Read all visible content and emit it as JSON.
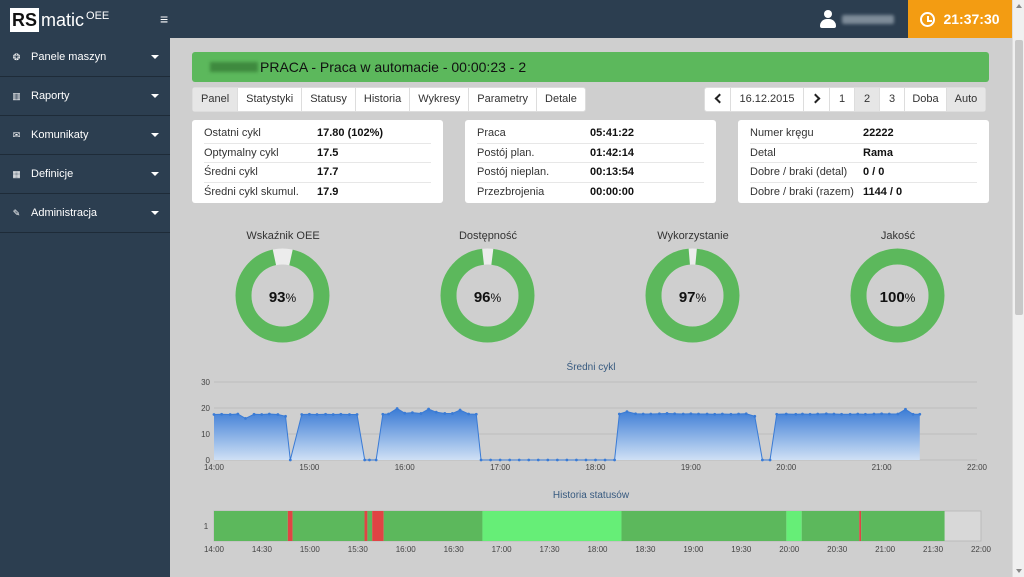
{
  "header": {
    "logo_rs": "RS",
    "logo_matic": "matic",
    "logo_oee": "OEE",
    "menu_toggle": "≡",
    "clock": "21:37:30"
  },
  "sidebar": {
    "items": [
      {
        "label": "Panele maszyn",
        "icon": "dashboard-icon",
        "glyph": "❂"
      },
      {
        "label": "Raporty",
        "icon": "bar-chart-icon",
        "glyph": "▥"
      },
      {
        "label": "Komunikaty",
        "icon": "envelope-icon",
        "glyph": "✉"
      },
      {
        "label": "Definicje",
        "icon": "table-icon",
        "glyph": "▦"
      },
      {
        "label": "Administracja",
        "icon": "wrench-icon",
        "glyph": "✎"
      }
    ]
  },
  "status_banner": {
    "text": "PRACA - Praca w automacie - 00:00:23 - 2",
    "color": "#5cb85c"
  },
  "tabs": [
    "Panel",
    "Statystyki",
    "Statusy",
    "Historia",
    "Wykresy",
    "Parametry",
    "Detale"
  ],
  "pager": {
    "date": "16.12.2015",
    "pages": [
      "1",
      "2",
      "3"
    ],
    "active_page": "2",
    "doba": "Doba",
    "auto": "Auto"
  },
  "panel_cycle": [
    {
      "label": "Ostatni cykl",
      "value": "17.80 (102%)"
    },
    {
      "label": "Optymalny cykl",
      "value": "17.5"
    },
    {
      "label": "Średni cykl",
      "value": "17.7"
    },
    {
      "label": "Średni cykl skumul.",
      "value": "17.9"
    }
  ],
  "panel_time": [
    {
      "label": "Praca",
      "value": "05:41:22"
    },
    {
      "label": "Postój plan.",
      "value": "01:42:14"
    },
    {
      "label": "Postój nieplan.",
      "value": "00:13:54"
    },
    {
      "label": "Przezbrojenia",
      "value": "00:00:00"
    }
  ],
  "panel_detail": [
    {
      "label": "Numer kręgu",
      "value": "22222"
    },
    {
      "label": "Detal",
      "value": "Rama"
    },
    {
      "label": "Dobre / braki (detal)",
      "value": "0 / 0"
    },
    {
      "label": "Dobre / braki (razem)",
      "value": "1144 / 0"
    }
  ],
  "gauges": [
    {
      "title": "Wskaźnik OEE",
      "value": 93,
      "text": "93",
      "unit": "%"
    },
    {
      "title": "Dostępność",
      "value": 96,
      "text": "96",
      "unit": "%"
    },
    {
      "title": "Wykorzystanie",
      "value": 97,
      "text": "97",
      "unit": "%"
    },
    {
      "title": "Jakość",
      "value": 100,
      "text": "100",
      "unit": "%"
    }
  ],
  "colors": {
    "green": "#5cb85c",
    "gauge_rest": "#ececec",
    "accent": "#f39c12",
    "nav": "#2c3e50",
    "area": "#3a7bd5",
    "status_work": "#5cb85c",
    "status_plan": "#66ee77",
    "status_unplan": "#e04444"
  },
  "chart_data": [
    {
      "type": "area",
      "title": "Średni cykl",
      "ylim": [
        0,
        30
      ],
      "yticks": [
        "0",
        "10",
        "20",
        "30"
      ],
      "xticks": [
        "14:00",
        "15:00",
        "16:00",
        "17:00",
        "18:00",
        "19:00",
        "20:00",
        "21:00",
        "22:00"
      ],
      "x_hours": [
        14.0,
        14.08,
        14.17,
        14.25,
        14.33,
        14.42,
        14.5,
        14.58,
        14.67,
        14.75,
        14.8,
        14.92,
        15.0,
        15.08,
        15.17,
        15.25,
        15.33,
        15.42,
        15.5,
        15.58,
        15.63,
        15.7,
        15.77,
        15.83,
        15.92,
        16.0,
        16.08,
        16.17,
        16.25,
        16.33,
        16.42,
        16.5,
        16.58,
        16.67,
        16.75,
        16.8,
        16.9,
        17.0,
        17.1,
        17.2,
        17.3,
        17.4,
        17.5,
        17.6,
        17.7,
        17.8,
        17.9,
        18.0,
        18.1,
        18.2,
        18.25,
        18.33,
        18.42,
        18.5,
        18.58,
        18.67,
        18.75,
        18.83,
        18.92,
        19.0,
        19.08,
        19.17,
        19.25,
        19.33,
        19.42,
        19.5,
        19.58,
        19.67,
        19.75,
        19.83,
        19.9,
        20.0,
        20.1,
        20.17,
        20.25,
        20.33,
        20.42,
        20.5,
        20.58,
        20.67,
        20.75,
        20.83,
        20.92,
        21.0,
        21.08,
        21.17,
        21.25,
        21.33,
        21.4
      ],
      "values": [
        17.5,
        17.6,
        17.5,
        17.7,
        16.0,
        17.6,
        17.5,
        17.7,
        17.5,
        16.8,
        0,
        17.5,
        17.6,
        17.5,
        17.6,
        17.5,
        17.6,
        17.5,
        17.5,
        0,
        0,
        0,
        17.6,
        17.7,
        19.8,
        18.0,
        18.2,
        17.9,
        19.6,
        18.4,
        17.9,
        17.9,
        19.2,
        17.7,
        17.6,
        0,
        0,
        0,
        0,
        0,
        0,
        0,
        0,
        0,
        0,
        0,
        0,
        0,
        0,
        0,
        17.7,
        18.6,
        17.8,
        17.7,
        17.7,
        17.8,
        17.9,
        17.8,
        17.7,
        17.8,
        17.7,
        17.7,
        17.6,
        17.7,
        17.6,
        17.7,
        17.8,
        16.8,
        0,
        0,
        17.6,
        17.7,
        17.6,
        17.7,
        17.6,
        17.7,
        17.8,
        17.7,
        17.6,
        17.6,
        17.7,
        17.6,
        17.7,
        17.8,
        17.7,
        17.7,
        19.5,
        17.6,
        17.6
      ]
    },
    {
      "type": "heatmap",
      "title": "Historia statusów",
      "y_label": "1",
      "xticks": [
        "14:00",
        "14:30",
        "15:00",
        "15:30",
        "16:00",
        "16:30",
        "17:00",
        "17:30",
        "18:00",
        "18:30",
        "19:00",
        "19:30",
        "20:00",
        "20:30",
        "21:00",
        "21:30",
        "22:00"
      ],
      "segments": [
        {
          "start": 14.0,
          "end": 14.77,
          "status": "praca"
        },
        {
          "start": 14.77,
          "end": 14.82,
          "status": "postoj_nieplan"
        },
        {
          "start": 14.82,
          "end": 15.57,
          "status": "praca"
        },
        {
          "start": 15.57,
          "end": 15.6,
          "status": "postoj_nieplan"
        },
        {
          "start": 15.6,
          "end": 15.65,
          "status": "praca"
        },
        {
          "start": 15.65,
          "end": 15.77,
          "status": "postoj_nieplan"
        },
        {
          "start": 15.77,
          "end": 16.8,
          "status": "praca"
        },
        {
          "start": 16.8,
          "end": 18.25,
          "status": "postoj_plan"
        },
        {
          "start": 18.25,
          "end": 19.97,
          "status": "praca"
        },
        {
          "start": 19.97,
          "end": 20.13,
          "status": "postoj_plan"
        },
        {
          "start": 20.13,
          "end": 20.73,
          "status": "praca"
        },
        {
          "start": 20.73,
          "end": 20.75,
          "status": "postoj_nieplan"
        },
        {
          "start": 20.75,
          "end": 21.62,
          "status": "praca"
        }
      ]
    }
  ]
}
